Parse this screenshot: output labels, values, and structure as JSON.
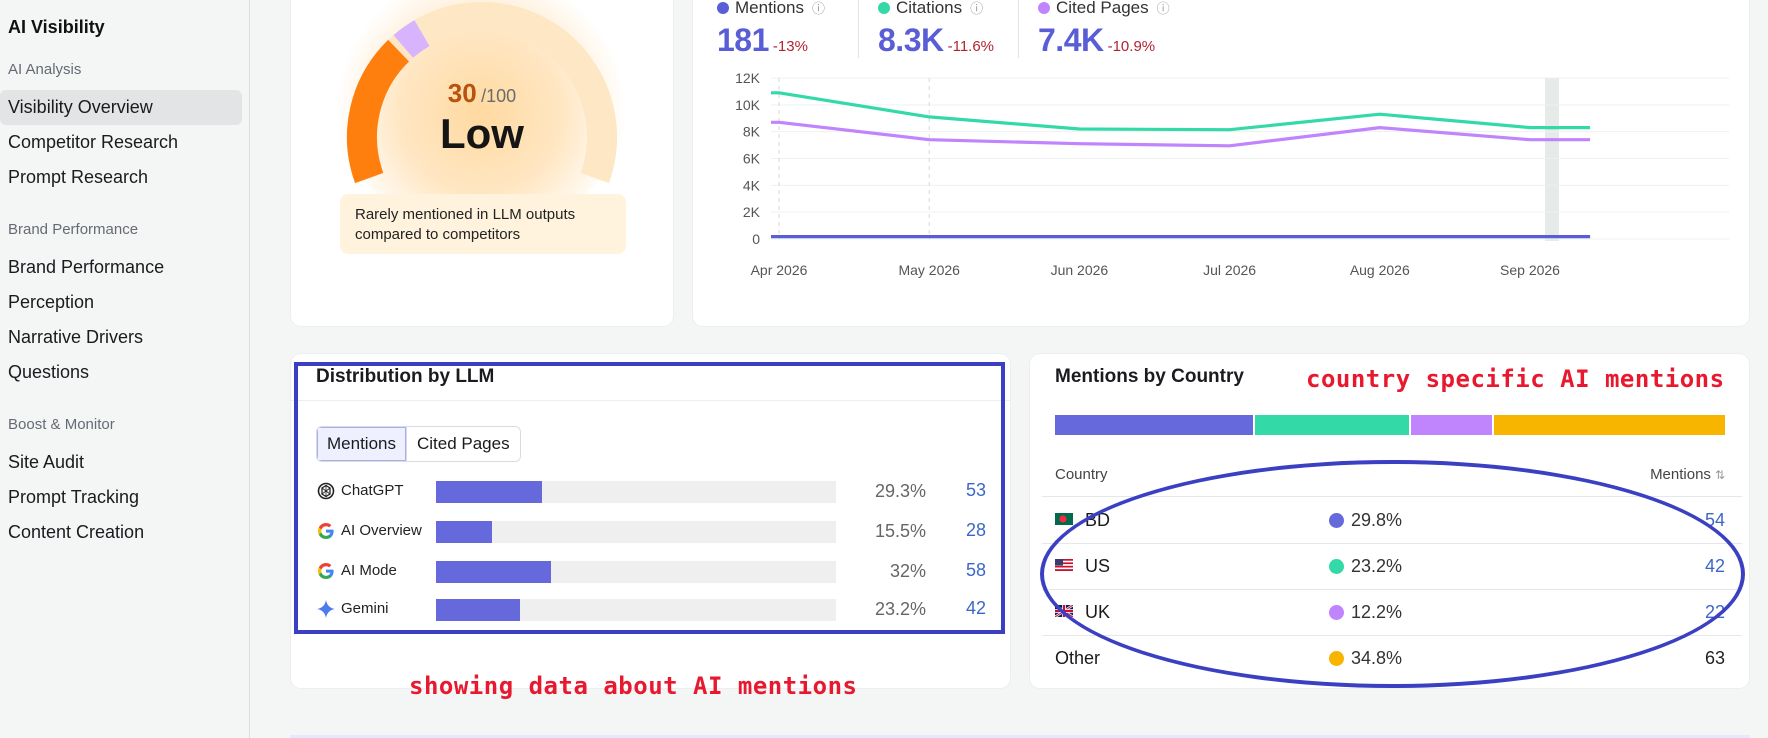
{
  "sidebar": {
    "title": "AI Visibility",
    "sections": [
      {
        "label": "AI Analysis",
        "items": [
          "Visibility Overview",
          "Competitor Research",
          "Prompt Research"
        ]
      },
      {
        "label": "Brand Performance",
        "items": [
          "Brand Performance",
          "Perception",
          "Narrative Drivers",
          "Questions"
        ]
      },
      {
        "label": "Boost & Monitor",
        "items": [
          "Site Audit",
          "Prompt Tracking",
          "Content Creation"
        ]
      }
    ],
    "active_item": "Visibility Overview"
  },
  "gauge": {
    "score": "30",
    "max": "/100",
    "level": "Low",
    "note": "Rarely mentioned in LLM outputs compared to competitors",
    "score_fraction": 0.3,
    "colors": {
      "fill": "#ff7f0e",
      "competitor": "#d8b4fe",
      "track": "#fde7c4"
    }
  },
  "trend": {
    "metrics": [
      {
        "label": "Mentions",
        "value": "181",
        "change": "-13%",
        "color": "#5a5ed6"
      },
      {
        "label": "Citations",
        "value": "8.3K",
        "change": "-11.6%",
        "color": "#34d9a8"
      },
      {
        "label": "Cited Pages",
        "value": "7.4K",
        "change": "-10.9%",
        "color": "#c084fc"
      }
    ],
    "chart_data": {
      "type": "line",
      "x": [
        "Apr 2026",
        "May 2026",
        "Jun 2026",
        "Jul 2026",
        "Aug 2026",
        "Sep 2026"
      ],
      "x_ticks": [
        "Apr 2026",
        "May 2026",
        "Jun 2026",
        "Jul 2026",
        "Aug 2026",
        "Sep 2026"
      ],
      "y_ticks": [
        "0",
        "2K",
        "4K",
        "6K",
        "8K",
        "10K",
        "12K"
      ],
      "ylim": [
        0,
        12000
      ],
      "series": [
        {
          "name": "Citations",
          "color": "#34d9a8",
          "points": [
            [
              -0.4,
              10900
            ],
            [
              0,
              10900
            ],
            [
              1,
              9100
            ],
            [
              2,
              8200
            ],
            [
              3,
              8150
            ],
            [
              4,
              9300
            ],
            [
              5,
              8300
            ],
            [
              5.4,
              8300
            ]
          ]
        },
        {
          "name": "Cited Pages",
          "color": "#c084fc",
          "points": [
            [
              -0.4,
              8700
            ],
            [
              0,
              8700
            ],
            [
              1,
              7400
            ],
            [
              2,
              7100
            ],
            [
              3,
              6950
            ],
            [
              4,
              8300
            ],
            [
              5,
              7400
            ],
            [
              5.4,
              7400
            ]
          ]
        },
        {
          "name": "Mentions",
          "color": "#5a5ed6",
          "points": [
            [
              -0.4,
              181
            ],
            [
              0,
              181
            ],
            [
              1,
              181
            ],
            [
              2,
              181
            ],
            [
              3,
              181
            ],
            [
              4,
              181
            ],
            [
              5,
              181
            ],
            [
              5.4,
              181
            ]
          ]
        }
      ]
    }
  },
  "distribution": {
    "title": "Distribution by LLM",
    "tabs": [
      "Mentions",
      "Cited Pages"
    ],
    "active_tab": "Mentions",
    "rows": [
      {
        "name": "ChatGPT",
        "icon": "chatgpt-icon",
        "pct": "29.3%",
        "count": "53",
        "fraction": 0.293
      },
      {
        "name": "AI Overview",
        "icon": "google-icon",
        "pct": "15.5%",
        "count": "28",
        "fraction": 0.155
      },
      {
        "name": "AI Mode",
        "icon": "google-icon",
        "pct": "32%",
        "count": "58",
        "fraction": 0.32
      },
      {
        "name": "Gemini",
        "icon": "gemini-icon",
        "pct": "23.2%",
        "count": "42",
        "fraction": 0.232
      }
    ],
    "bar_color": "#6569dc"
  },
  "country": {
    "title": "Mentions by Country",
    "col_country": "Country",
    "col_mentions": "Mentions",
    "rows": [
      {
        "code": "BD",
        "flag": "bd-flag",
        "pct": "29.8%",
        "count": "54",
        "color": "#6569dc",
        "fraction": 0.298
      },
      {
        "code": "US",
        "flag": "us-flag",
        "pct": "23.2%",
        "count": "42",
        "color": "#34d9a8",
        "fraction": 0.232
      },
      {
        "code": "UK",
        "flag": "uk-flag",
        "pct": "12.2%",
        "count": "22",
        "color": "#c084fc",
        "fraction": 0.122
      },
      {
        "code": "Other",
        "flag": "",
        "pct": "34.8%",
        "count": "63",
        "color": "#f7b500",
        "fraction": 0.348
      }
    ]
  },
  "annotations": {
    "country_note": "country specific AI mentions",
    "distribution_note": "showing data about AI mentions",
    "color": "#e8192f"
  }
}
